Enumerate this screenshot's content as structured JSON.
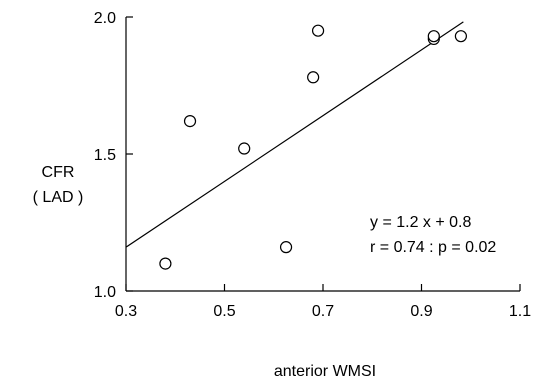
{
  "chart_data": {
    "type": "scatter",
    "xlabel": "anterior WMSI",
    "ylabel_line1": "CFR",
    "ylabel_line2": "( LAD )",
    "xlim": [
      0.3,
      1.1
    ],
    "ylim": [
      1.0,
      2.0
    ],
    "xticks": [
      0.3,
      0.5,
      0.7,
      0.9,
      1.1
    ],
    "xtick_labels": [
      "0.3",
      "0.5",
      "0.7",
      "0.9",
      "1.1"
    ],
    "yticks": [
      1.0,
      1.5,
      2.0
    ],
    "ytick_labels": [
      "1.0",
      "1.5",
      "2.0"
    ],
    "points": [
      {
        "x": 0.38,
        "y": 1.1
      },
      {
        "x": 0.43,
        "y": 1.62
      },
      {
        "x": 0.54,
        "y": 1.52
      },
      {
        "x": 0.625,
        "y": 1.16
      },
      {
        "x": 0.68,
        "y": 1.78
      },
      {
        "x": 0.69,
        "y": 1.95
      },
      {
        "x": 0.925,
        "y": 1.92
      },
      {
        "x": 0.925,
        "y": 1.93
      },
      {
        "x": 0.98,
        "y": 1.93
      }
    ],
    "regression": {
      "slope": 1.2,
      "intercept": 0.8,
      "x_start": 0.3,
      "x_end": 0.985
    },
    "annotations": {
      "equation": "y = 1.2 x + 0.8",
      "stats": "r = 0.74 : p = 0.02"
    },
    "grid": false,
    "legend": "none"
  }
}
